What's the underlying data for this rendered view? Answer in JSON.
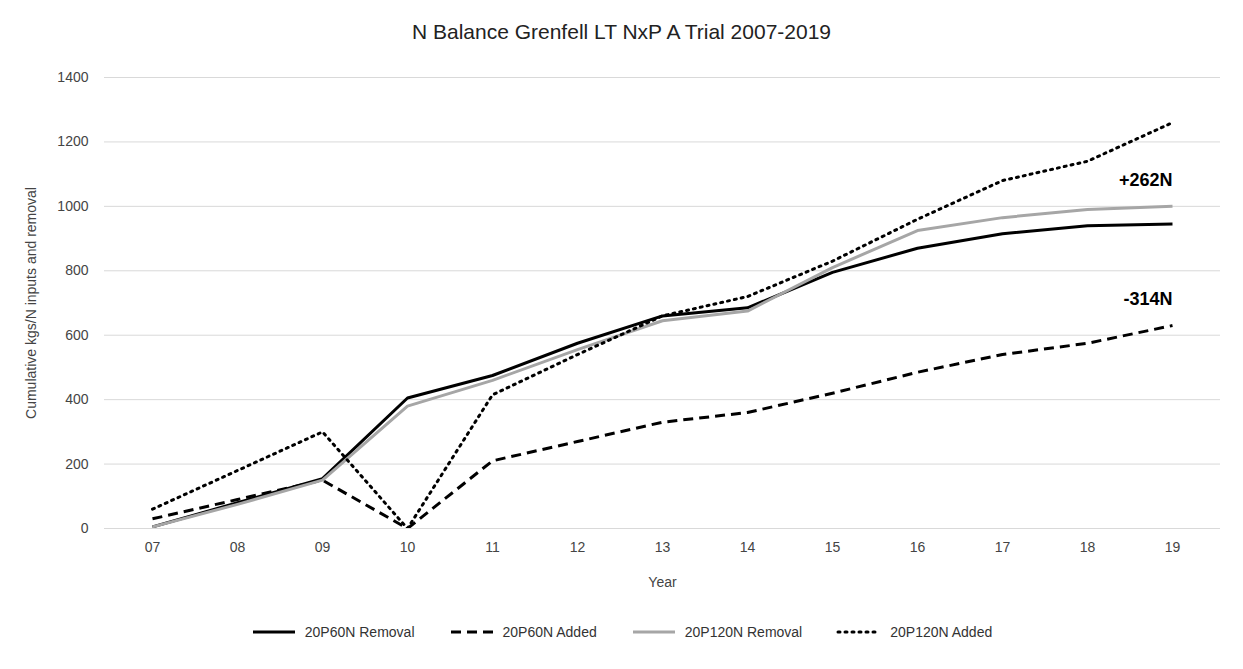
{
  "chart_data": {
    "type": "line",
    "title": "N Balance Grenfell LT NxP A Trial 2007-2019",
    "x_label": "Year",
    "y_label": "Cumulative kgs/N inputs and removal",
    "categories": [
      "07",
      "08",
      "09",
      "10",
      "11",
      "12",
      "13",
      "14",
      "15",
      "16",
      "17",
      "18",
      "19"
    ],
    "series": [
      {
        "name": "20P60N Removal",
        "color": "#000000",
        "line_style": "solid",
        "values": [
          5,
          80,
          155,
          405,
          475,
          575,
          660,
          685,
          795,
          870,
          915,
          940,
          945
        ]
      },
      {
        "name": "20P60N Added",
        "color": "#000000",
        "line_style": "dashed",
        "values": [
          30,
          90,
          150,
          0,
          210,
          270,
          330,
          360,
          420,
          485,
          540,
          575,
          630
        ]
      },
      {
        "name": "20P120N Removal",
        "color": "#a6a6a6",
        "line_style": "solid",
        "values": [
          5,
          75,
          150,
          380,
          460,
          555,
          645,
          675,
          810,
          925,
          965,
          990,
          1000
        ]
      },
      {
        "name": "20P120N Added",
        "color": "#000000",
        "line_style": "dotted",
        "values": [
          60,
          180,
          300,
          0,
          415,
          540,
          660,
          720,
          830,
          960,
          1080,
          1140,
          1260
        ]
      }
    ],
    "annotations": [
      {
        "text": "+262N",
        "series": "20P120N Removal"
      },
      {
        "text": "-314N",
        "series": "20P60N Added"
      }
    ],
    "ylim": [
      0,
      1400
    ],
    "yticks": [
      0,
      200,
      400,
      600,
      800,
      1000,
      1200,
      1400
    ],
    "grid": true,
    "legend": "bottom"
  }
}
